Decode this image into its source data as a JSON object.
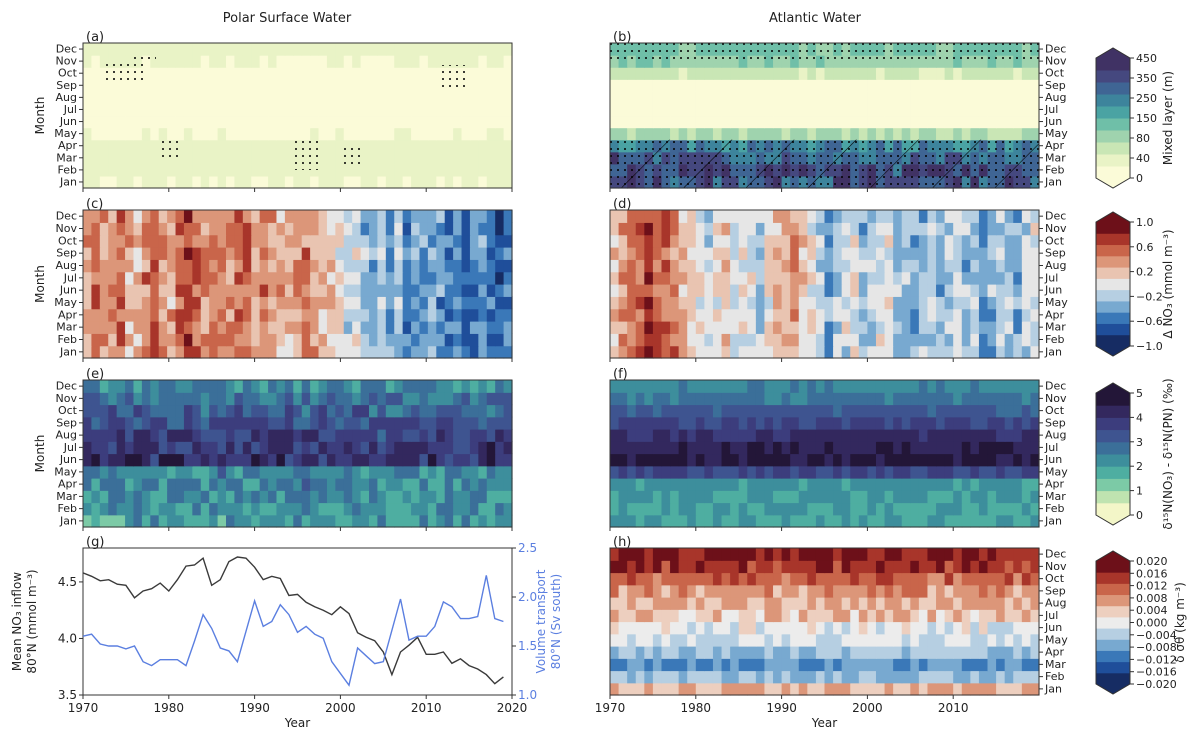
{
  "titles": {
    "left": "Polar Surface Water",
    "right": "Atlantic Water"
  },
  "months": [
    "Jan",
    "Feb",
    "Mar",
    "Apr",
    "May",
    "Jun",
    "Jul",
    "Aug",
    "Sep",
    "Oct",
    "Nov",
    "Dec"
  ],
  "x_ticks": [
    "1970",
    "1980",
    "1990",
    "2000",
    "2010",
    "2020"
  ],
  "x_ticks_right": [
    "1970",
    "1980",
    "1990",
    "2000",
    "2010"
  ],
  "xlabel": "Year",
  "ylabel_month": "Month",
  "panels": [
    {
      "id": "a",
      "label": "(a)"
    },
    {
      "id": "b",
      "label": "(b)"
    },
    {
      "id": "c",
      "label": "(c)"
    },
    {
      "id": "d",
      "label": "(d)"
    },
    {
      "id": "e",
      "label": "(e)"
    },
    {
      "id": "f",
      "label": "(f)"
    },
    {
      "id": "g",
      "label": "(g)"
    },
    {
      "id": "h",
      "label": "(h)"
    }
  ],
  "colorbars": [
    {
      "id": "mld",
      "label": "Mixed layer (m)",
      "ticks": [
        "0",
        "40",
        "80",
        "150",
        "250",
        "350",
        "450"
      ],
      "colors": [
        "#fbfbd8",
        "#e9f3c6",
        "#c9e6b5",
        "#9fd3ae",
        "#6fbfa8",
        "#4aa3a3",
        "#3d849c",
        "#3f6594",
        "#45487f",
        "#403264"
      ]
    },
    {
      "id": "no3",
      "label": "Δ NO₃ (mmol m⁻³)",
      "ticks": [
        "−1.0",
        "−0.6",
        "−0.2",
        "0.2",
        "0.6",
        "1.0"
      ],
      "colors": [
        "#162c63",
        "#1f4e9a",
        "#3a78b8",
        "#78a9d0",
        "#b6cfe2",
        "#e6e6e6",
        "#e9c4b1",
        "#dc9679",
        "#c9654a",
        "#a8352a",
        "#6d1019"
      ]
    },
    {
      "id": "d15n",
      "label": "δ¹⁵N(NO₃) - δ¹⁵N(PN) (‰)",
      "ticks": [
        "0",
        "1",
        "2",
        "3",
        "4",
        "5"
      ],
      "colors": [
        "#f3f6c8",
        "#bfe3b0",
        "#7ccaa6",
        "#4eaea1",
        "#3d8e9c",
        "#3b6f99",
        "#3e5490",
        "#3c3d7d",
        "#33285e",
        "#231638"
      ]
    },
    {
      "id": "sigma",
      "label": "δ σθ (kg m⁻³)",
      "ticks": [
        "0.020",
        "0.016",
        "0.012",
        "0.008",
        "0.004",
        "0.000",
        "−0.004",
        "−0.008",
        "−0.012",
        "−0.016",
        "−0.020"
      ],
      "colors": [
        "#162c63",
        "#1f4e9a",
        "#3a78b8",
        "#78a9d0",
        "#b6cfe2",
        "#ececec",
        "#edcfbf",
        "#dc9679",
        "#c9654a",
        "#a8352a",
        "#6d1019"
      ]
    }
  ],
  "chart_data": [
    {
      "type": "heatmap",
      "panel": "a",
      "title": "Polar Surface Water",
      "xlabel": "",
      "ylabel": "Month",
      "xlim": [
        1970,
        2020
      ],
      "colorbar": "Mixed layer (m)",
      "rows_by_month": [
        30,
        40,
        45,
        40,
        25,
        10,
        5,
        5,
        8,
        20,
        30,
        35
      ]
    },
    {
      "type": "heatmap",
      "panel": "b",
      "title": "Atlantic Water",
      "xlabel": "",
      "ylabel": "",
      "xlim": [
        1970,
        2019
      ],
      "colorbar": "Mixed layer (m)",
      "rows_by_month": [
        400,
        420,
        380,
        300,
        90,
        20,
        10,
        10,
        20,
        60,
        120,
        150
      ]
    },
    {
      "type": "heatmap",
      "panel": "c",
      "xlabel": "",
      "ylabel": "Month",
      "xlim": [
        1970,
        2020
      ],
      "colorbar": "Δ NO₃ (mmol m⁻³)",
      "trend_by_year": [
        0.3,
        0.5,
        0.4,
        0.4,
        0.6,
        0.3,
        0.2,
        0.5,
        0.7,
        0.4,
        0.3,
        0.6,
        0.8,
        0.6,
        0.4,
        0.5,
        0.5,
        0.4,
        0.5,
        0.6,
        0.3,
        0.5,
        0.4,
        0.3,
        0.3,
        0.4,
        0.5,
        0.3,
        0.2,
        0.2,
        0.0,
        -0.1,
        -0.1,
        -0.3,
        -0.4,
        -0.2,
        -0.5,
        -0.3,
        -0.6,
        -0.4,
        -0.5,
        -0.4,
        -0.5,
        -0.6,
        -0.5,
        -0.7,
        -0.6,
        -0.5,
        -0.7,
        -0.8,
        -0.6
      ]
    },
    {
      "type": "heatmap",
      "panel": "d",
      "xlabel": "",
      "ylabel": "",
      "xlim": [
        1970,
        2019
      ],
      "colorbar": "Δ NO₃ (mmol m⁻³)",
      "trend_by_year": [
        0.2,
        0.4,
        0.5,
        0.6,
        0.8,
        0.7,
        0.6,
        0.5,
        0.2,
        0.1,
        0.0,
        -0.1,
        0.1,
        0.2,
        -0.1,
        0.0,
        -0.1,
        -0.2,
        0.1,
        0.2,
        0.3,
        0.4,
        0.2,
        0.0,
        -0.2,
        -0.4,
        -0.2,
        -0.1,
        0.0,
        -0.3,
        -0.2,
        -0.1,
        0.0,
        -0.2,
        -0.3,
        -0.4,
        -0.3,
        -0.2,
        -0.4,
        -0.2,
        -0.1,
        -0.3,
        -0.2,
        -0.5,
        -0.3,
        -0.2,
        -0.3,
        -0.4,
        -0.2,
        -0.1
      ]
    },
    {
      "type": "heatmap",
      "panel": "e",
      "xlabel": "",
      "ylabel": "Month",
      "xlim": [
        1970,
        2020
      ],
      "colorbar": "δ¹⁵N(NO₃) - δ¹⁵N(PN) (‰)",
      "rows_by_month": [
        2.2,
        2.3,
        2.4,
        2.5,
        2.6,
        4.2,
        4.0,
        3.8,
        3.5,
        3.2,
        2.8,
        2.4
      ]
    },
    {
      "type": "heatmap",
      "panel": "f",
      "xlabel": "",
      "ylabel": "",
      "xlim": [
        1970,
        2019
      ],
      "colorbar": "δ¹⁵N(NO₃) - δ¹⁵N(PN) (‰)",
      "rows_by_month": [
        2.0,
        2.0,
        2.1,
        2.3,
        3.6,
        4.8,
        4.6,
        4.2,
        3.8,
        3.3,
        2.8,
        2.4
      ]
    },
    {
      "type": "line",
      "panel": "g",
      "xlabel": "Year",
      "ylabel": "Mean NO₃ inflow 80°N (mmol m⁻³)",
      "y2label": "Volume transport 80°N (Sv south)",
      "xlim": [
        1970,
        2020
      ],
      "ylim": [
        3.5,
        4.8
      ],
      "y2lim": [
        1.0,
        2.5
      ],
      "x": [
        1970,
        1971,
        1972,
        1973,
        1974,
        1975,
        1976,
        1977,
        1978,
        1979,
        1980,
        1981,
        1982,
        1983,
        1984,
        1985,
        1986,
        1987,
        1988,
        1989,
        1990,
        1991,
        1992,
        1993,
        1994,
        1995,
        1996,
        1997,
        1998,
        1999,
        2000,
        2001,
        2002,
        2003,
        2004,
        2005,
        2006,
        2007,
        2008,
        2009,
        2010,
        2011,
        2012,
        2013,
        2014,
        2015,
        2016,
        2017,
        2018,
        2019
      ],
      "series": [
        {
          "name": "Mean NO₃ inflow",
          "axis": "left",
          "color": "#3a3a3a",
          "values": [
            4.58,
            4.55,
            4.51,
            4.52,
            4.48,
            4.47,
            4.36,
            4.42,
            4.44,
            4.49,
            4.42,
            4.52,
            4.64,
            4.65,
            4.71,
            4.47,
            4.52,
            4.68,
            4.72,
            4.71,
            4.63,
            4.52,
            4.55,
            4.53,
            4.38,
            4.39,
            4.32,
            4.28,
            4.25,
            4.21,
            4.28,
            4.22,
            4.05,
            4.01,
            3.98,
            3.88,
            3.68,
            3.88,
            3.94,
            4.01,
            3.86,
            3.86,
            3.88,
            3.78,
            3.82,
            3.76,
            3.73,
            3.68,
            3.6,
            3.66
          ]
        },
        {
          "name": "Volume transport",
          "axis": "right",
          "color": "#5b7fe0",
          "values": [
            1.6,
            1.62,
            1.52,
            1.5,
            1.5,
            1.47,
            1.5,
            1.34,
            1.3,
            1.36,
            1.36,
            1.36,
            1.3,
            1.55,
            1.82,
            1.68,
            1.48,
            1.45,
            1.34,
            1.65,
            1.96,
            1.7,
            1.75,
            1.92,
            1.82,
            1.64,
            1.7,
            1.62,
            1.58,
            1.34,
            1.22,
            1.1,
            1.48,
            1.4,
            1.32,
            1.34,
            1.66,
            1.98,
            1.56,
            1.6,
            1.6,
            1.7,
            1.95,
            1.9,
            1.78,
            1.78,
            1.8,
            2.22,
            1.78,
            1.75
          ]
        }
      ]
    },
    {
      "type": "heatmap",
      "panel": "h",
      "xlabel": "Year",
      "ylabel": "",
      "xlim": [
        1970,
        2019
      ],
      "colorbar": "δ σθ (kg m⁻³)",
      "rows_by_month": [
        0.006,
        -0.006,
        -0.01,
        -0.006,
        -0.002,
        0.0,
        0.004,
        0.006,
        0.008,
        0.012,
        0.016,
        0.018
      ]
    }
  ]
}
